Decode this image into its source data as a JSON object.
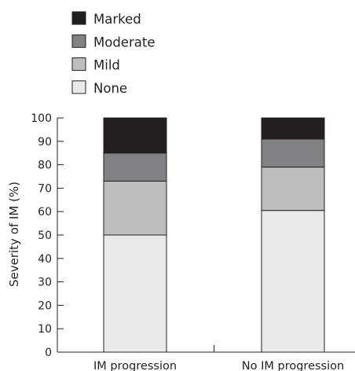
{
  "chart_data": {
    "type": "bar",
    "stacked": true,
    "categories": [
      "IM progression",
      "No IM progression"
    ],
    "series": [
      {
        "name": "None",
        "values": [
          50,
          60.5
        ],
        "color": "#e9e9ec"
      },
      {
        "name": "Mild",
        "values": [
          23,
          18.5
        ],
        "color": "#bcbdbf"
      },
      {
        "name": "Moderate",
        "values": [
          12,
          12
        ],
        "color": "#808285"
      },
      {
        "name": "Marked",
        "values": [
          15,
          9
        ],
        "color": "#231f20"
      }
    ],
    "legend_order": [
      "Marked",
      "Moderate",
      "Mild",
      "None"
    ],
    "legend_position": "top-left",
    "ylabel": "Severity of IM (%)",
    "xlabel": "",
    "ylim": [
      0,
      100
    ],
    "yticks": [
      "0",
      "10",
      "20",
      "30",
      "40",
      "50",
      "60",
      "70",
      "80",
      "90",
      "100"
    ],
    "grid": false
  }
}
